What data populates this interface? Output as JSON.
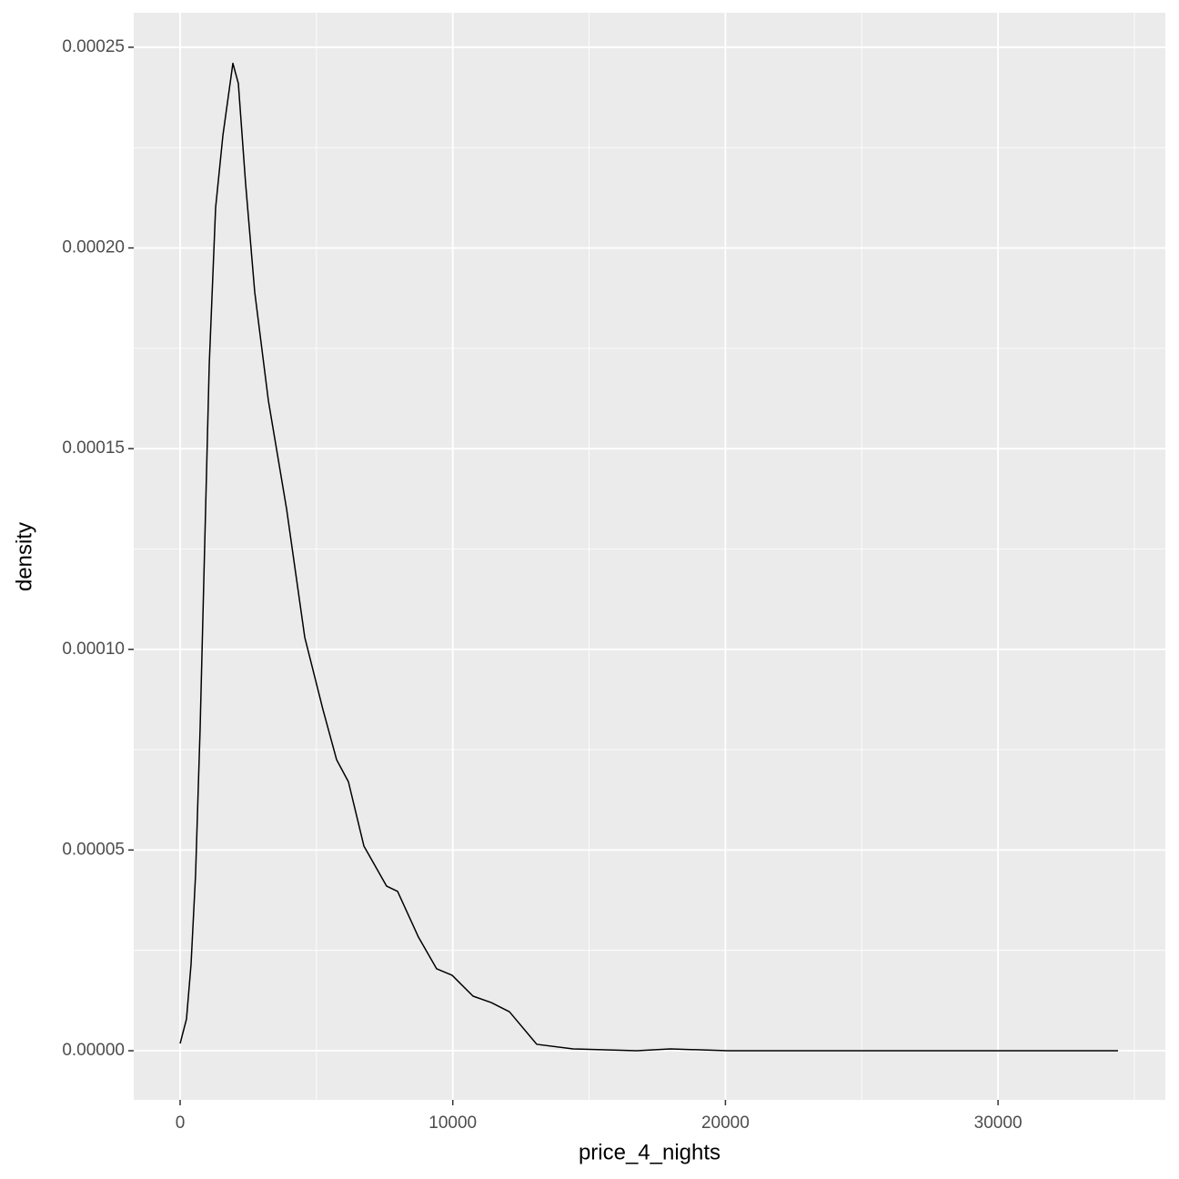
{
  "chart_data": {
    "type": "density",
    "x_label": "price_4_nights",
    "y_label": "density",
    "x": [
      0,
      233,
      400,
      567,
      734,
      901,
      1068,
      1301,
      1568,
      1935,
      2135,
      2402,
      2736,
      3236,
      3904,
      4571,
      5238,
      5739,
      6173,
      6740,
      7574,
      7975,
      8742,
      9409,
      9977,
      10744,
      11411,
      12079,
      13080,
      14414,
      16750,
      17985,
      20087,
      34400
    ],
    "values": [
      1.8e-06,
      7.9e-06,
      2.15e-05,
      4.4e-05,
      8.05e-05,
      0.000126,
      0.000171,
      0.00021,
      0.000228,
      0.000246,
      0.000241,
      0.000216,
      0.000189,
      0.000162,
      0.000135,
      0.000103,
      8.5e-05,
      7.25e-05,
      6.7e-05,
      5.1e-05,
      4.1e-05,
      3.97e-05,
      2.83e-05,
      2.04e-05,
      1.88e-05,
      1.36e-05,
      1.2e-05,
      9.7e-06,
      1.6e-06,
      4.5e-07,
      0,
      4.5e-07,
      0,
      0
    ],
    "color": "#000000",
    "xlim": [
      -1702,
      36136
    ],
    "ylim": [
      -1.224e-05,
      0.0002586
    ],
    "xticks": [
      0,
      10000,
      20000,
      30000
    ],
    "yticks": [
      {
        "value": 0,
        "label": "0.00000"
      },
      {
        "value": 5e-05,
        "label": "0.00005"
      },
      {
        "value": 0.0001,
        "label": "0.00010"
      },
      {
        "value": 0.00015,
        "label": "0.00015"
      },
      {
        "value": 0.0002,
        "label": "0.00020"
      },
      {
        "value": 0.00025,
        "label": "0.00025"
      }
    ],
    "x_minor_grid": [
      5000,
      15000,
      25000,
      35000
    ],
    "y_minor_grid": [
      2.5e-05,
      7.5e-05,
      0.000125,
      0.000175,
      0.000225
    ],
    "grid": true
  }
}
